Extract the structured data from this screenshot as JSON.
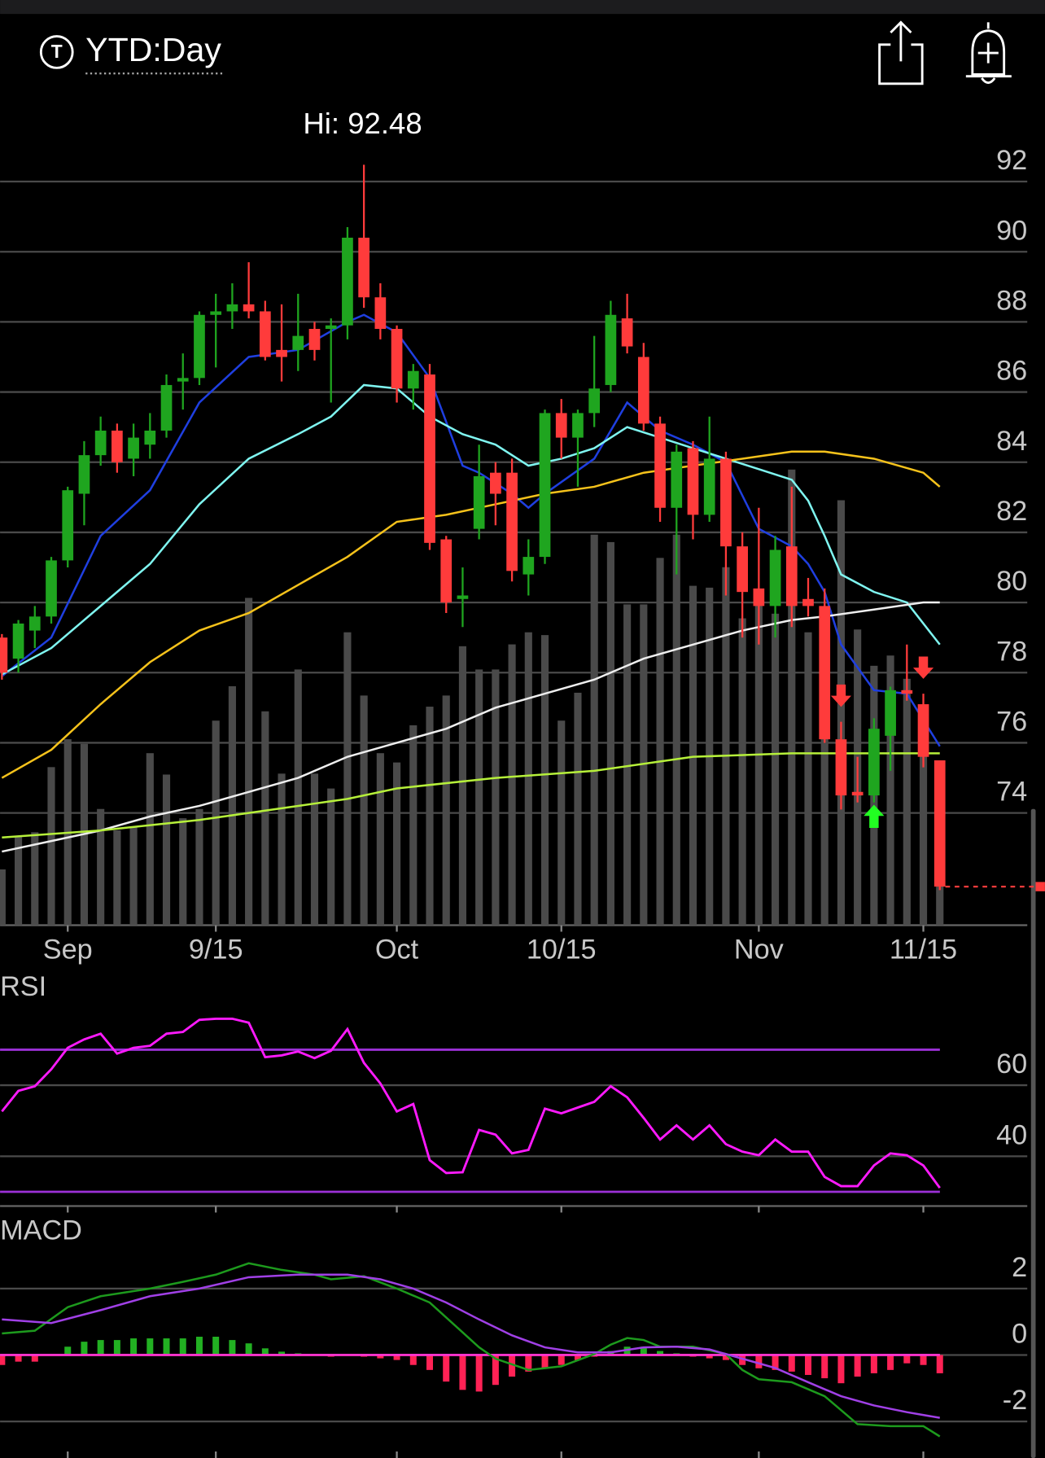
{
  "header": {
    "timeframe": "YTD:Day"
  },
  "chart_data": [
    {
      "type": "candlestick",
      "annotation": "Hi: 92.48",
      "categories": [
        null,
        null,
        null,
        null,
        "Sep",
        null,
        null,
        null,
        null,
        null,
        null,
        null,
        null,
        "9/15",
        null,
        null,
        null,
        null,
        null,
        null,
        null,
        null,
        null,
        null,
        "Oct",
        null,
        null,
        null,
        null,
        null,
        null,
        null,
        null,
        null,
        "10/15",
        null,
        null,
        null,
        null,
        null,
        null,
        null,
        null,
        null,
        null,
        null,
        "Nov",
        null,
        null,
        null,
        null,
        null,
        null,
        null,
        null,
        null,
        "11/15",
        null
      ],
      "open": [
        79.0,
        78.4,
        79.2,
        79.6,
        81.2,
        83.1,
        84.2,
        84.9,
        84.1,
        84.5,
        84.9,
        86.3,
        86.4,
        88.2,
        88.3,
        88.5,
        88.3,
        87.2,
        87.2,
        87.8,
        87.8,
        87.9,
        90.4,
        88.7,
        87.8,
        86.1,
        86.5,
        81.8,
        80.1,
        82.1,
        83.7,
        83.7,
        80.8,
        81.3,
        85.4,
        84.7,
        85.4,
        86.2,
        88.1,
        87.0,
        85.1,
        82.7,
        84.4,
        82.5,
        84.1,
        81.6,
        80.4,
        79.9,
        81.6,
        80.1,
        79.9,
        76.1,
        74.6,
        74.5,
        76.2,
        77.5,
        77.1,
        75.5
      ],
      "high": [
        79.1,
        79.5,
        79.9,
        81.3,
        83.3,
        84.6,
        85.3,
        85.1,
        85.1,
        85.4,
        86.5,
        87.1,
        88.3,
        88.8,
        89.1,
        89.7,
        88.6,
        88.5,
        88.8,
        88.0,
        88.1,
        90.7,
        92.48,
        89.1,
        87.9,
        86.8,
        86.8,
        81.9,
        81.0,
        84.5,
        84.0,
        84.1,
        81.8,
        85.5,
        85.8,
        85.5,
        87.6,
        88.6,
        88.8,
        87.4,
        85.3,
        84.5,
        84.6,
        85.3,
        84.3,
        82.0,
        82.7,
        81.9,
        83.3,
        80.7,
        80.4,
        76.6,
        75.6,
        76.7,
        77.6,
        78.8,
        77.4,
        75.5
      ],
      "low": [
        77.8,
        78.0,
        78.7,
        79.4,
        81.0,
        82.2,
        83.9,
        83.7,
        83.6,
        84.1,
        84.7,
        85.5,
        86.2,
        86.7,
        87.8,
        88.1,
        86.9,
        86.3,
        86.6,
        86.9,
        85.7,
        87.5,
        88.4,
        87.5,
        85.7,
        85.5,
        81.5,
        79.7,
        79.3,
        81.8,
        82.2,
        80.6,
        80.2,
        81.1,
        84.1,
        83.3,
        85.0,
        86.0,
        87.1,
        84.9,
        82.3,
        80.8,
        81.8,
        82.3,
        80.2,
        79.0,
        78.8,
        79.0,
        79.3,
        79.6,
        76.0,
        74.1,
        74.3,
        74.3,
        75.2,
        77.2,
        75.3,
        71.8
      ],
      "close": [
        78.0,
        79.4,
        79.6,
        81.2,
        83.2,
        84.2,
        84.9,
        84.0,
        84.7,
        84.9,
        86.2,
        86.4,
        88.2,
        88.3,
        88.5,
        88.3,
        87.0,
        87.0,
        87.6,
        87.2,
        87.9,
        90.4,
        88.7,
        87.8,
        86.1,
        86.6,
        81.7,
        80.0,
        80.2,
        83.6,
        83.1,
        80.9,
        81.3,
        85.4,
        84.7,
        85.4,
        86.1,
        88.2,
        87.3,
        85.1,
        82.7,
        84.3,
        82.5,
        84.1,
        81.6,
        80.3,
        79.9,
        81.5,
        79.9,
        79.9,
        76.1,
        74.5,
        74.5,
        76.4,
        77.5,
        77.4,
        75.6,
        71.9
      ],
      "volume": [
        60,
        95,
        100,
        170,
        200,
        195,
        125,
        102,
        105,
        185,
        162,
        115,
        125,
        220,
        257,
        352,
        230,
        163,
        275,
        163,
        147,
        315,
        247,
        185,
        175,
        215,
        235,
        247,
        300,
        275,
        275,
        302,
        315,
        312,
        220,
        250,
        420,
        412,
        345,
        345,
        395,
        420,
        365,
        363,
        385,
        330,
        345,
        335,
        490,
        315,
        295,
        457,
        318,
        279,
        290,
        265,
        230,
        73
      ],
      "up_color": "#1fa51f",
      "down_color": "#ff3b3b",
      "volume_color": "#4a4a4a",
      "series": [
        {
          "color": "#1f3fe0",
          "x": [
            0,
            3,
            6,
            9,
            12,
            15,
            18,
            21,
            22,
            24,
            26,
            28,
            29,
            31,
            32,
            33,
            36,
            38,
            40,
            42,
            44,
            46,
            48,
            49,
            50,
            51,
            53,
            55,
            57
          ],
          "values": [
            77.9,
            79.0,
            81.9,
            83.2,
            85.7,
            87.0,
            87.2,
            88.0,
            88.2,
            87.7,
            86.4,
            83.9,
            83.7,
            83.1,
            82.7,
            83.1,
            84.1,
            85.7,
            84.9,
            84.5,
            84.0,
            82.1,
            81.6,
            81.1,
            80.3,
            78.8,
            77.5,
            77.4,
            75.9
          ]
        },
        {
          "color": "#7ff5f0",
          "x": [
            0,
            3,
            6,
            9,
            12,
            15,
            18,
            20,
            22,
            24,
            26,
            28,
            30,
            32,
            34,
            36,
            38,
            40,
            42,
            44,
            46,
            48,
            49,
            50,
            51,
            53,
            55,
            57
          ],
          "values": [
            77.95,
            78.7,
            79.9,
            81.1,
            82.8,
            84.1,
            84.8,
            85.3,
            86.2,
            86.1,
            85.3,
            84.8,
            84.5,
            83.9,
            84.1,
            84.4,
            85.0,
            84.7,
            84.4,
            84.1,
            83.8,
            83.5,
            82.9,
            81.9,
            80.8,
            80.3,
            80.0,
            78.8
          ]
        },
        {
          "color": "#f5c21b",
          "x": [
            0,
            3,
            6,
            9,
            12,
            15,
            18,
            21,
            24,
            27,
            30,
            33,
            36,
            39,
            42,
            45,
            48,
            50,
            53,
            56,
            57
          ],
          "values": [
            75.0,
            75.8,
            77.1,
            78.3,
            79.2,
            79.7,
            80.5,
            81.3,
            82.3,
            82.5,
            82.8,
            83.1,
            83.3,
            83.7,
            83.9,
            84.1,
            84.3,
            84.3,
            84.1,
            83.7,
            83.3
          ]
        },
        {
          "color": "#eeeeee",
          "x": [
            0,
            3,
            6,
            9,
            12,
            15,
            18,
            21,
            24,
            27,
            30,
            33,
            36,
            39,
            42,
            45,
            48,
            50,
            53,
            56,
            57
          ],
          "values": [
            72.9,
            73.2,
            73.5,
            73.9,
            74.2,
            74.6,
            75.0,
            75.6,
            76.0,
            76.4,
            77.0,
            77.4,
            77.8,
            78.4,
            78.8,
            79.2,
            79.5,
            79.6,
            79.8,
            80.0,
            80.0
          ]
        },
        {
          "color": "#b6f03a",
          "x": [
            0,
            6,
            12,
            18,
            21,
            24,
            30,
            36,
            42,
            48,
            53,
            57
          ],
          "values": [
            73.3,
            73.5,
            73.8,
            74.2,
            74.4,
            74.7,
            75.0,
            75.2,
            75.6,
            75.7,
            75.7,
            75.7
          ]
        }
      ],
      "sell_signals": [
        51,
        56
      ],
      "buy_signals": [
        53
      ],
      "ylim": [
        70.8,
        93.2
      ],
      "yticks": [
        74,
        76,
        78,
        80,
        82,
        84,
        86,
        88,
        90,
        92
      ],
      "grid": true
    },
    {
      "type": "line",
      "title": "RSI",
      "color": "#ff1aff",
      "values": [
        52.6,
        58.4,
        59.7,
        64.5,
        70.5,
        72.9,
        74.5,
        68.9,
        70.5,
        71.1,
        74.5,
        75.0,
        78.4,
        78.7,
        78.7,
        77.6,
        67.9,
        68.4,
        69.5,
        67.6,
        69.7,
        75.8,
        66.3,
        60.5,
        52.6,
        54.7,
        38.9,
        35.3,
        35.5,
        47.4,
        46.1,
        40.8,
        41.8,
        53.4,
        52.1,
        53.7,
        55.3,
        59.7,
        56.6,
        50.8,
        44.7,
        48.7,
        44.7,
        48.7,
        43.4,
        41.3,
        40.3,
        44.7,
        41.3,
        41.3,
        34.2,
        31.6,
        31.6,
        37.4,
        40.8,
        40.3,
        37.4,
        31.1
      ],
      "levels": [
        70,
        30
      ],
      "level_color": "#9b30d6",
      "ylim": [
        26,
        82
      ],
      "yticks": [
        40,
        60
      ],
      "grid": true
    },
    {
      "type": "macd",
      "title": "MACD",
      "series": [
        {
          "color": "#1d9a1d",
          "x": [
            0,
            2,
            4,
            6,
            9,
            11,
            13,
            15,
            17,
            19,
            20,
            22,
            24,
            26,
            28,
            29,
            30,
            32,
            34,
            36,
            37,
            38,
            39,
            40,
            42,
            44,
            45,
            46,
            48,
            50,
            52,
            54,
            56,
            57
          ],
          "values": [
            0.65,
            0.73,
            1.44,
            1.77,
            2.0,
            2.2,
            2.42,
            2.76,
            2.56,
            2.42,
            2.28,
            2.37,
            2.0,
            1.58,
            0.68,
            0.23,
            -0.11,
            -0.45,
            -0.34,
            0.03,
            0.31,
            0.51,
            0.45,
            0.25,
            0.25,
            0.03,
            -0.45,
            -0.73,
            -0.82,
            -1.24,
            -2.08,
            -2.14,
            -2.14,
            -2.45
          ]
        },
        {
          "color": "#a040e6",
          "x": [
            0,
            3,
            6,
            9,
            12,
            15,
            18,
            21,
            23,
            25,
            27,
            29,
            31,
            33,
            35,
            37,
            39,
            41,
            43,
            45,
            47,
            49,
            51,
            53,
            55,
            57
          ],
          "values": [
            1.07,
            0.96,
            1.35,
            1.77,
            2.0,
            2.34,
            2.42,
            2.42,
            2.28,
            2.0,
            1.58,
            1.07,
            0.59,
            0.23,
            0.08,
            0.08,
            0.23,
            0.25,
            0.17,
            -0.11,
            -0.39,
            -0.82,
            -1.24,
            -1.52,
            -1.72,
            -1.89
          ]
        }
      ],
      "histogram": [
        -0.3,
        -0.2,
        -0.2,
        0,
        0.25,
        0.4,
        0.45,
        0.45,
        0.5,
        0.5,
        0.5,
        0.5,
        0.55,
        0.55,
        0.45,
        0.35,
        0.2,
        0.1,
        0.05,
        0.02,
        -0.05,
        0.02,
        -0.05,
        -0.1,
        -0.15,
        -0.3,
        -0.45,
        -0.8,
        -1.05,
        -1.1,
        -0.9,
        -0.65,
        -0.5,
        -0.4,
        -0.3,
        -0.15,
        -0.05,
        0.12,
        0.25,
        0.25,
        0.12,
        0.05,
        -0.05,
        -0.1,
        -0.15,
        -0.3,
        -0.4,
        -0.45,
        -0.5,
        -0.6,
        -0.7,
        -0.85,
        -0.65,
        -0.55,
        -0.45,
        -0.25,
        -0.3,
        -0.55
      ],
      "up_color": "#22b022",
      "down_color": "#ff2255",
      "zero_color": "#ff33cc",
      "ylim": [
        -3.1,
        4.4
      ],
      "yticks": [
        -2,
        0,
        2
      ],
      "grid": true
    }
  ]
}
